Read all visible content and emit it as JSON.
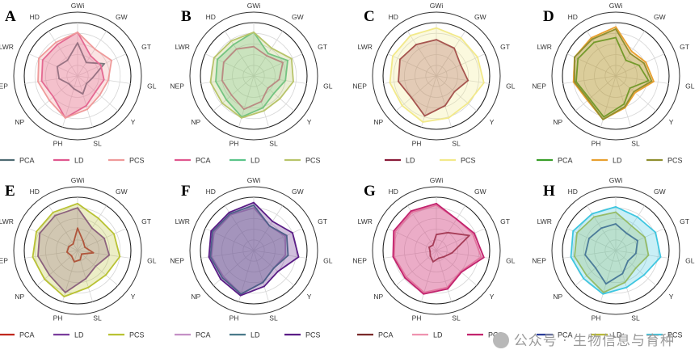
{
  "axes": [
    "GWi",
    "GW",
    "GT",
    "GL",
    "Y",
    "SL",
    "PH",
    "NP",
    "NEP",
    "LWR",
    "HD"
  ],
  "colors": {
    "pink": "#e0578f",
    "salmon": "#ef9a9a",
    "slate": "#4f6b73",
    "green": "#5cc48a",
    "olive": "#b8c46a",
    "maroon": "#8a1c3a",
    "yellow": "#f2e98a",
    "pcaGreen": "#3a9f2a",
    "orange": "#e8a030",
    "khaki": "#8f8f30",
    "red": "#c0281e",
    "purple": "#7a3d9c",
    "lime": "#b9c234",
    "mauve": "#c490c6",
    "steel": "#4a7a8a",
    "darkpurple": "#5a1d86",
    "brown": "#7a2a2a",
    "lightpink": "#ef93b0",
    "magenta": "#c2246e",
    "navy": "#2a3d9a",
    "yellowgreen": "#b8b83a",
    "cyan": "#3ec6e0"
  },
  "chart_data": [
    {
      "type": "radar",
      "panel": "A",
      "rmax": 1,
      "series": [
        {
          "name": "PCA",
          "color": "slate",
          "fill": false,
          "values": [
            0.62,
            0.3,
            0.55,
            0.28,
            0.22,
            0.35,
            0.25,
            0.22,
            0.35,
            0.42,
            0.35
          ]
        },
        {
          "name": "LD",
          "color": "pink",
          "fill": true,
          "values": [
            0.82,
            0.45,
            0.48,
            0.5,
            0.45,
            0.58,
            0.82,
            0.6,
            0.68,
            0.72,
            0.7
          ]
        },
        {
          "name": "PCS",
          "color": "salmon",
          "fill": true,
          "values": [
            0.82,
            0.6,
            0.7,
            0.58,
            0.55,
            0.65,
            0.82,
            0.7,
            0.75,
            0.8,
            0.75
          ]
        }
      ]
    },
    {
      "type": "radar",
      "panel": "B",
      "rmax": 1,
      "series": [
        {
          "name": "PCA",
          "color": "pink",
          "fill": false,
          "values": [
            0.55,
            0.45,
            0.6,
            0.48,
            0.35,
            0.5,
            0.65,
            0.55,
            0.6,
            0.62,
            0.6
          ]
        },
        {
          "name": "LD",
          "color": "green",
          "fill": true,
          "values": [
            0.82,
            0.5,
            0.7,
            0.6,
            0.5,
            0.62,
            0.8,
            0.68,
            0.72,
            0.75,
            0.7
          ]
        },
        {
          "name": "PCS",
          "color": "olive",
          "fill": true,
          "values": [
            0.82,
            0.62,
            0.78,
            0.75,
            0.65,
            0.68,
            0.82,
            0.78,
            0.82,
            0.82,
            0.78
          ]
        }
      ]
    },
    {
      "type": "radar",
      "panel": "C",
      "rmax": 1,
      "series": [
        {
          "name": "LD",
          "color": "maroon",
          "fill": true,
          "values": [
            0.68,
            0.62,
            0.5,
            0.6,
            0.45,
            0.58,
            0.78,
            0.62,
            0.72,
            0.75,
            0.7
          ]
        },
        {
          "name": "PCS",
          "color": "yellow",
          "fill": true,
          "values": [
            0.9,
            0.85,
            0.85,
            0.9,
            0.78,
            0.82,
            0.9,
            0.85,
            0.88,
            0.9,
            0.9
          ]
        }
      ]
    },
    {
      "type": "radar",
      "panel": "D",
      "rmax": 1,
      "series": [
        {
          "name": "PCA",
          "color": "pcaGreen",
          "fill": false,
          "values": [
            0.72,
            0.35,
            0.48,
            0.62,
            0.35,
            0.55,
            0.8,
            0.65,
            0.75,
            0.78,
            0.75
          ]
        },
        {
          "name": "LD",
          "color": "orange",
          "fill": true,
          "values": [
            0.92,
            0.55,
            0.62,
            0.72,
            0.48,
            0.62,
            0.85,
            0.7,
            0.8,
            0.85,
            0.85
          ]
        },
        {
          "name": "PCS",
          "color": "khaki",
          "fill": true,
          "values": [
            0.88,
            0.5,
            0.58,
            0.68,
            0.45,
            0.6,
            0.85,
            0.68,
            0.78,
            0.85,
            0.82
          ]
        }
      ]
    },
    {
      "type": "radar",
      "panel": "E",
      "rmax": 1,
      "series": [
        {
          "name": "PCA",
          "color": "red",
          "fill": false,
          "values": [
            0.42,
            0.2,
            0.15,
            0.3,
            0.1,
            0.18,
            0.22,
            0.15,
            0.2,
            0.18,
            0.15
          ]
        },
        {
          "name": "LD",
          "color": "purple",
          "fill": true,
          "values": [
            0.8,
            0.5,
            0.55,
            0.6,
            0.45,
            0.55,
            0.82,
            0.7,
            0.75,
            0.78,
            0.78
          ]
        },
        {
          "name": "PCS",
          "color": "lime",
          "fill": true,
          "values": [
            0.88,
            0.72,
            0.75,
            0.8,
            0.7,
            0.72,
            0.9,
            0.82,
            0.85,
            0.85,
            0.85
          ]
        }
      ]
    },
    {
      "type": "radar",
      "panel": "F",
      "rmax": 1,
      "series": [
        {
          "name": "PCA",
          "color": "mauve",
          "fill": true,
          "values": [
            0.8,
            0.55,
            0.65,
            0.6,
            0.5,
            0.62,
            0.85,
            0.75,
            0.8,
            0.82,
            0.8
          ]
        },
        {
          "name": "LD",
          "color": "steel",
          "fill": true,
          "values": [
            0.85,
            0.55,
            0.68,
            0.65,
            0.5,
            0.62,
            0.85,
            0.78,
            0.82,
            0.85,
            0.82
          ]
        },
        {
          "name": "PCS",
          "color": "darkpurple",
          "fill": true,
          "values": [
            0.9,
            0.65,
            0.8,
            0.85,
            0.6,
            0.7,
            0.88,
            0.82,
            0.85,
            0.88,
            0.85
          ]
        }
      ]
    },
    {
      "type": "radar",
      "panel": "G",
      "rmax": 1,
      "series": [
        {
          "name": "PCA",
          "color": "brown",
          "fill": false,
          "values": [
            0.3,
            0.4,
            0.68,
            0.3,
            0.18,
            0.15,
            0.22,
            0.15,
            0.12,
            0.15,
            0.12
          ]
        },
        {
          "name": "LD",
          "color": "lightpink",
          "fill": true,
          "values": [
            0.85,
            0.7,
            0.75,
            0.85,
            0.6,
            0.72,
            0.82,
            0.75,
            0.8,
            0.85,
            0.85
          ]
        },
        {
          "name": "PCS",
          "color": "magenta",
          "fill": true,
          "values": [
            0.88,
            0.7,
            0.78,
            0.9,
            0.62,
            0.75,
            0.85,
            0.78,
            0.82,
            0.88,
            0.88
          ]
        }
      ]
    },
    {
      "type": "radar",
      "panel": "H",
      "rmax": 1,
      "series": [
        {
          "name": "PCA",
          "color": "navy",
          "fill": false,
          "values": [
            0.5,
            0.38,
            0.45,
            0.38,
            0.3,
            0.45,
            0.65,
            0.5,
            0.58,
            0.55,
            0.5
          ]
        },
        {
          "name": "LD",
          "color": "yellowgreen",
          "fill": true,
          "values": [
            0.72,
            0.55,
            0.6,
            0.62,
            0.5,
            0.62,
            0.82,
            0.72,
            0.78,
            0.8,
            0.75
          ]
        },
        {
          "name": "PCS",
          "color": "cyan",
          "fill": true,
          "values": [
            0.82,
            0.75,
            0.82,
            0.85,
            0.7,
            0.72,
            0.85,
            0.8,
            0.85,
            0.88,
            0.82
          ]
        }
      ]
    }
  ],
  "watermark": "公众号 · 生物信息与育种"
}
